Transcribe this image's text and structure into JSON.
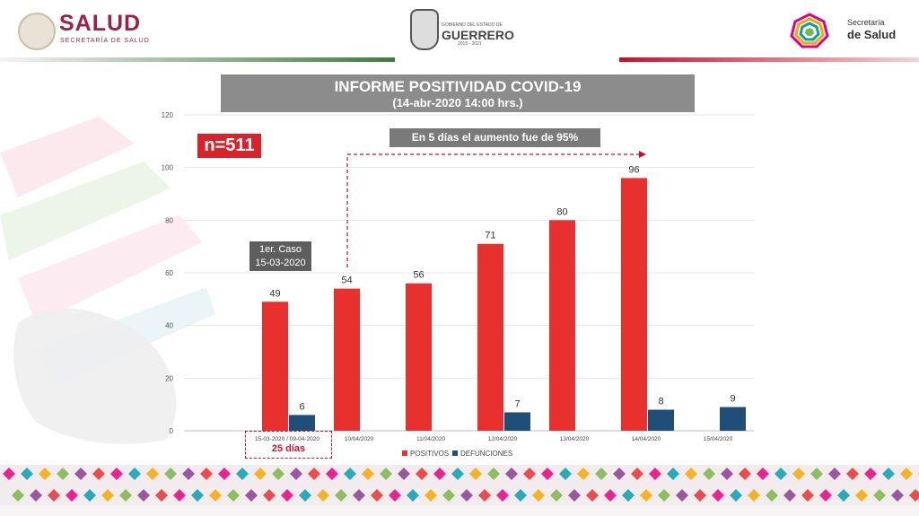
{
  "header": {
    "left_logo_title": "SALUD",
    "left_logo_subtitle": "SECRETARÍA DE SALUD",
    "center_logo_small": "GOBIERNO DEL ESTADO DE",
    "center_logo_title": "GUERRERO",
    "center_logo_years": "2015 - 2021",
    "right_logo_line1": "Secretaría",
    "right_logo_line2": "de Salud"
  },
  "title": {
    "line1": "INFORME POSITIVIDAD COVID-19",
    "line2": "(14-abr-2020  14:00 hrs.)"
  },
  "annotations": {
    "n_total": "n=511",
    "growth_note": "En 5 días el aumento fue de 95%",
    "first_case_line1": "1er. Caso",
    "first_case_line2": "15-03-2020",
    "days_label": "25 días"
  },
  "colors": {
    "positivos": "#e8312f",
    "defunciones": "#1f4e79",
    "accent_red": "#c8102e"
  },
  "chart_data": {
    "type": "bar",
    "categories": [
      "15-03-2020 / 09-04-2020",
      "10/04/2020",
      "11/04/2020",
      "12/04/2020",
      "13/04/2020",
      "14/04/2020",
      "15/04/2020"
    ],
    "series": [
      {
        "name": "POSITIVOS",
        "values": [
          49,
          54,
          56,
          71,
          80,
          96,
          null
        ]
      },
      {
        "name": "DEFUNCIONES",
        "values": [
          6,
          null,
          null,
          7,
          null,
          8,
          9
        ]
      }
    ],
    "yticks": [
      "0",
      "20",
      "40",
      "60",
      "80",
      "100",
      "120"
    ],
    "ylim": [
      0,
      120
    ],
    "grid": true,
    "legend_position": "bottom"
  }
}
